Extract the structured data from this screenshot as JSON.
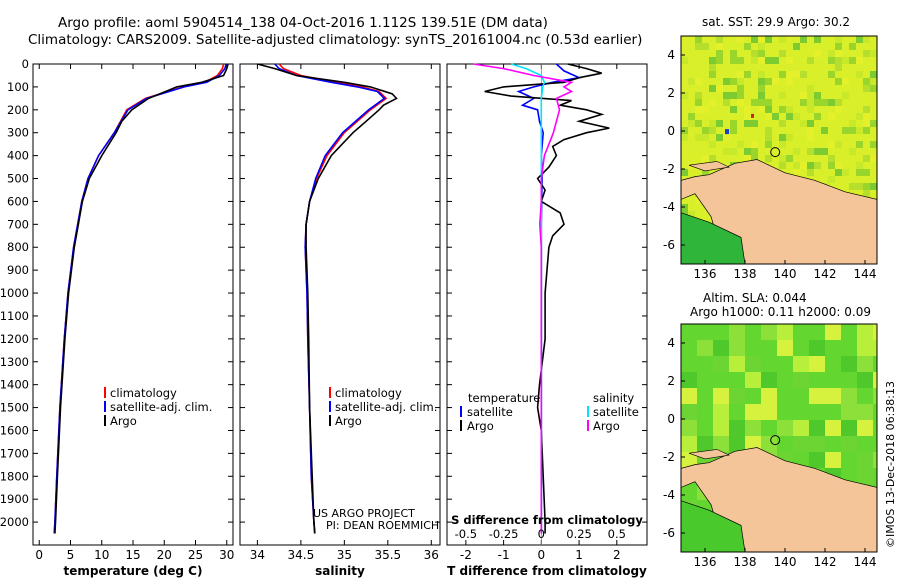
{
  "title_line1": "Argo profile: aoml 5904514_138 04-Oct-2016 1.112S 139.51E (DM data)",
  "title_line2": "Climatology: CARS2009. Satellite-adjusted climatology: synTS_20161004.nc (0.53d earlier)",
  "colors": {
    "climatology": "#ff0000",
    "satellite": "#0000ff",
    "argo": "#000000",
    "sal_sat": "#00e5ff",
    "sal_argo": "#ff00ff",
    "land": "#f5c59a"
  },
  "chart_data": [
    {
      "type": "line",
      "name": "temperature",
      "xlabel": "temperature (deg C)",
      "xlim": [
        -1,
        31
      ],
      "ylim": [
        2100,
        0
      ],
      "xticks": [
        0,
        5,
        10,
        15,
        20,
        25,
        30
      ],
      "yticks": [
        0,
        100,
        200,
        300,
        400,
        500,
        600,
        700,
        800,
        900,
        1000,
        1100,
        1200,
        1300,
        1400,
        1500,
        1600,
        1700,
        1800,
        1900,
        2000
      ],
      "legend": [
        "climatology",
        "satellite-adj. clim.",
        "Argo"
      ],
      "series": [
        {
          "name": "climatology",
          "depth": [
            0,
            20,
            50,
            80,
            100,
            150,
            200,
            300,
            400,
            500,
            600,
            800,
            1000,
            1200,
            1500,
            1800,
            2000,
            2050
          ],
          "values": [
            29.5,
            29.3,
            28.5,
            26.5,
            23,
            17,
            14,
            12,
            9.5,
            7.8,
            6.8,
            5.5,
            4.6,
            4,
            3.3,
            2.8,
            2.5,
            2.4
          ]
        },
        {
          "name": "satellite-adj. clim.",
          "depth": [
            0,
            20,
            50,
            80,
            100,
            150,
            200,
            300,
            400,
            500,
            600,
            800,
            1000,
            1200,
            1500,
            1800,
            2000,
            2050
          ],
          "values": [
            29.9,
            29.7,
            28.8,
            26.8,
            23.2,
            17.2,
            14.2,
            12,
            9.5,
            7.8,
            6.8,
            5.5,
            4.6,
            4,
            3.3,
            2.8,
            2.5,
            2.4
          ]
        },
        {
          "name": "Argo",
          "depth": [
            0,
            20,
            50,
            80,
            100,
            150,
            200,
            250,
            300,
            400,
            500,
            600,
            800,
            1000,
            1200,
            1500,
            1800,
            2000,
            2050
          ],
          "values": [
            30.2,
            30,
            29.5,
            26,
            22,
            17.5,
            14.8,
            13.2,
            12.3,
            10,
            8,
            6.9,
            5.6,
            4.7,
            4.1,
            3.4,
            2.9,
            2.6,
            2.5
          ]
        }
      ]
    },
    {
      "type": "line",
      "name": "salinity",
      "xlabel": "salinity",
      "xlim": [
        33.8,
        36.1
      ],
      "ylim": [
        2100,
        0
      ],
      "xticks": [
        34,
        34.5,
        35,
        35.5,
        36
      ],
      "legend": [
        "climatology",
        "satellite-adj. clim.",
        "Argo"
      ],
      "annotation": [
        "US ARGO PROJECT",
        "PI: DEAN ROEMMICH"
      ],
      "series": [
        {
          "name": "climatology",
          "depth": [
            0,
            20,
            50,
            80,
            100,
            120,
            150,
            200,
            300,
            400,
            500,
            600,
            700,
            800,
            1000,
            1200,
            1500,
            1800,
            2000,
            2050
          ],
          "values": [
            34.25,
            34.3,
            34.5,
            34.9,
            35.2,
            35.4,
            35.48,
            35.3,
            35.0,
            34.8,
            34.68,
            34.6,
            34.56,
            34.55,
            34.57,
            34.58,
            34.6,
            34.62,
            34.65,
            34.66
          ]
        },
        {
          "name": "satellite-adj. clim.",
          "depth": [
            0,
            20,
            50,
            80,
            100,
            120,
            150,
            200,
            300,
            400,
            500,
            600,
            700,
            800,
            1000,
            1200,
            1500,
            1800,
            2000,
            2050
          ],
          "values": [
            34.2,
            34.25,
            34.45,
            34.85,
            35.15,
            35.38,
            35.46,
            35.28,
            34.98,
            34.78,
            34.67,
            34.6,
            34.56,
            34.55,
            34.57,
            34.58,
            34.6,
            34.62,
            34.65,
            34.66
          ]
        },
        {
          "name": "Argo",
          "depth": [
            0,
            20,
            50,
            80,
            100,
            130,
            150,
            180,
            200,
            250,
            300,
            400,
            500,
            600,
            700,
            800,
            1000,
            1200,
            1500,
            1800,
            2000,
            2050
          ],
          "values": [
            34.0,
            34.2,
            34.45,
            35.0,
            35.3,
            35.55,
            35.6,
            35.45,
            35.4,
            35.25,
            35.1,
            34.85,
            34.7,
            34.6,
            34.56,
            34.56,
            34.58,
            34.59,
            34.6,
            34.63,
            34.65,
            34.66
          ]
        }
      ]
    },
    {
      "type": "line",
      "name": "differences",
      "xlabel": "T difference from climatology",
      "xlabel_top": "S difference from climatology",
      "xlim": [
        -2.5,
        2.8
      ],
      "ylim": [
        2100,
        0
      ],
      "xticks": [
        -2,
        -1,
        0,
        1,
        2
      ],
      "top_ticks": [
        "-0.5",
        "-0.25",
        "0",
        "0.25",
        "0.5"
      ],
      "legend_left_title": "temperature",
      "legend_right_title": "salinity",
      "legend_left": [
        "satellite",
        "Argo"
      ],
      "legend_right": [
        "satellite",
        "Argo"
      ],
      "series": [
        {
          "name": "T satellite",
          "depth": [
            0,
            30,
            60,
            80,
            100,
            120,
            150,
            180,
            200,
            250,
            300,
            400,
            500,
            700,
            1000,
            1500,
            2000,
            2050
          ],
          "values": [
            0.4,
            0.6,
            1,
            0.3,
            -0.2,
            -0.6,
            -0.2,
            -0.5,
            -0.1,
            -0.05,
            0.05,
            0,
            0.02,
            0,
            0,
            0,
            0,
            0
          ]
        },
        {
          "name": "T Argo",
          "depth": [
            0,
            20,
            40,
            60,
            80,
            100,
            120,
            140,
            160,
            180,
            200,
            220,
            250,
            280,
            300,
            330,
            360,
            400,
            450,
            500,
            550,
            600,
            650,
            700,
            750,
            800,
            900,
            1000,
            1200,
            1400,
            1500,
            1600,
            1800,
            2000,
            2050
          ],
          "values": [
            0.7,
            1.2,
            1.6,
            1.0,
            0.6,
            -1.0,
            -1.5,
            -0.8,
            0.8,
            0.5,
            1.2,
            1.6,
            1.0,
            1.8,
            1.2,
            0.6,
            0.3,
            0.4,
            0.2,
            -0.1,
            0.1,
            0.0,
            0.5,
            0.6,
            0.3,
            0.2,
            0.15,
            0.1,
            0.1,
            -0.05,
            -0.1,
            0.0,
            0.05,
            0.1,
            0.1
          ]
        },
        {
          "name": "S satellite",
          "depth": [
            0,
            20,
            50,
            80,
            100,
            150,
            200,
            300,
            500,
            1000,
            1500,
            2000,
            2050
          ],
          "values": [
            -0.2,
            -0.1,
            0,
            0.02,
            0.01,
            0,
            0,
            0,
            0,
            0,
            0,
            0,
            0
          ]
        },
        {
          "name": "S Argo",
          "depth": [
            0,
            20,
            50,
            80,
            100,
            120,
            150,
            200,
            250,
            300,
            400,
            500,
            600,
            700,
            800,
            1000,
            1500,
            2000,
            2050
          ],
          "values": [
            -0.45,
            -0.25,
            -0.05,
            0.2,
            0.15,
            0.2,
            0.1,
            0.12,
            0.1,
            0.08,
            0.02,
            0,
            0,
            -0.01,
            0,
            0,
            0,
            0,
            0
          ]
        }
      ]
    }
  ],
  "sst_map": {
    "title": "sat. SST: 29.9 Argo: 30.2",
    "xticks": [
      "136",
      "138",
      "140",
      "142",
      "144"
    ],
    "yticks": [
      "4",
      "2",
      "0",
      "-2",
      "-4",
      "-6"
    ]
  },
  "sla_map": {
    "title1": "Altim. SLA: 0.044",
    "title2": "Argo h1000: 0.11 h2000: 0.09",
    "xticks": [
      "136",
      "138",
      "140",
      "142",
      "144"
    ],
    "yticks": [
      "4",
      "2",
      "0",
      "-2",
      "-4",
      "-6"
    ]
  },
  "stamp": "©IMOS 13-Dec-2018 06:38:13"
}
